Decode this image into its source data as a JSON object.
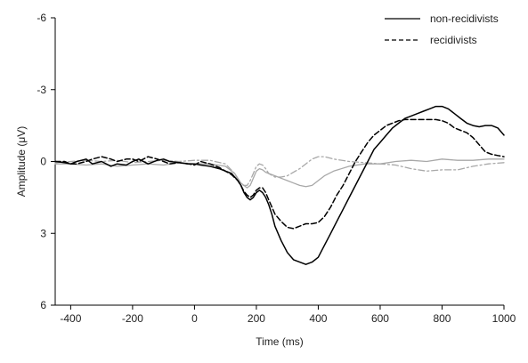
{
  "chart_data": {
    "type": "line",
    "title": "",
    "xlabel": "Time (ms)",
    "ylabel": "Amplitude (μV)",
    "xlim": [
      -450,
      1000
    ],
    "ylim": [
      6,
      -6
    ],
    "y_inverted": true,
    "x_ticks": [
      -400,
      -200,
      0,
      200,
      400,
      600,
      800,
      1000
    ],
    "y_ticks": [
      -6,
      -3,
      0,
      3,
      6
    ],
    "grid": false,
    "legend_position": "top-right",
    "series": [
      {
        "name": "non-recidivists",
        "color": "#000000",
        "style": "solid",
        "x": [
          -450,
          -420,
          -400,
          -380,
          -350,
          -330,
          -300,
          -270,
          -250,
          -220,
          -200,
          -180,
          -150,
          -120,
          -100,
          -80,
          -50,
          -20,
          0,
          20,
          50,
          80,
          100,
          120,
          140,
          150,
          160,
          170,
          180,
          190,
          200,
          210,
          220,
          230,
          240,
          250,
          260,
          280,
          300,
          320,
          340,
          360,
          380,
          400,
          420,
          440,
          460,
          480,
          500,
          520,
          540,
          560,
          580,
          600,
          620,
          640,
          660,
          680,
          700,
          720,
          740,
          760,
          780,
          800,
          820,
          840,
          860,
          880,
          900,
          920,
          940,
          960,
          980,
          1000
        ],
        "y": [
          0.0,
          0.05,
          0.1,
          0.0,
          -0.1,
          0.1,
          0.0,
          0.2,
          0.1,
          0.15,
          0.0,
          -0.1,
          0.1,
          -0.05,
          -0.1,
          0.0,
          0.05,
          0.1,
          0.1,
          0.15,
          0.2,
          0.3,
          0.4,
          0.5,
          0.8,
          1.0,
          1.3,
          1.5,
          1.6,
          1.5,
          1.3,
          1.2,
          1.3,
          1.5,
          1.8,
          2.2,
          2.7,
          3.3,
          3.8,
          4.1,
          4.2,
          4.3,
          4.2,
          4.0,
          3.5,
          3.0,
          2.5,
          2.0,
          1.5,
          1.0,
          0.5,
          0.0,
          -0.5,
          -0.8,
          -1.1,
          -1.4,
          -1.6,
          -1.8,
          -1.9,
          -2.0,
          -2.1,
          -2.2,
          -2.3,
          -2.3,
          -2.2,
          -2.0,
          -1.8,
          -1.6,
          -1.5,
          -1.45,
          -1.5,
          -1.5,
          -1.4,
          -1.1
        ]
      },
      {
        "name": "recidivists",
        "color": "#000000",
        "style": "dashed",
        "x": [
          -450,
          -420,
          -400,
          -380,
          -350,
          -330,
          -300,
          -270,
          -250,
          -220,
          -200,
          -180,
          -150,
          -120,
          -100,
          -80,
          -50,
          -20,
          0,
          20,
          50,
          80,
          100,
          120,
          140,
          150,
          160,
          170,
          180,
          190,
          200,
          210,
          220,
          230,
          240,
          250,
          260,
          280,
          300,
          320,
          340,
          360,
          380,
          400,
          420,
          440,
          460,
          480,
          500,
          520,
          540,
          560,
          580,
          600,
          620,
          640,
          660,
          680,
          700,
          720,
          740,
          760,
          780,
          800,
          820,
          840,
          860,
          880,
          900,
          920,
          940,
          960,
          980,
          1000
        ],
        "y": [
          0.0,
          0.0,
          0.1,
          0.1,
          0.0,
          -0.1,
          -0.2,
          -0.1,
          0.0,
          -0.1,
          -0.1,
          0.0,
          -0.2,
          -0.1,
          0.0,
          0.1,
          0.05,
          0.1,
          0.15,
          0.0,
          0.1,
          0.25,
          0.4,
          0.55,
          0.8,
          1.0,
          1.25,
          1.4,
          1.5,
          1.4,
          1.2,
          1.1,
          1.1,
          1.3,
          1.6,
          1.9,
          2.2,
          2.5,
          2.75,
          2.8,
          2.7,
          2.6,
          2.6,
          2.55,
          2.3,
          1.9,
          1.4,
          1.0,
          0.5,
          0.0,
          -0.4,
          -0.8,
          -1.1,
          -1.3,
          -1.5,
          -1.6,
          -1.7,
          -1.75,
          -1.75,
          -1.75,
          -1.75,
          -1.75,
          -1.75,
          -1.7,
          -1.6,
          -1.4,
          -1.3,
          -1.2,
          -1.0,
          -0.7,
          -0.4,
          -0.3,
          -0.25,
          -0.2
        ]
      },
      {
        "name": "",
        "color": "#a8a8a8",
        "style": "solid",
        "x": [
          -450,
          -400,
          -350,
          -300,
          -250,
          -200,
          -150,
          -100,
          -50,
          0,
          50,
          100,
          130,
          150,
          170,
          180,
          190,
          200,
          210,
          220,
          230,
          240,
          260,
          280,
          300,
          320,
          340,
          360,
          380,
          400,
          420,
          450,
          500,
          550,
          600,
          650,
          700,
          750,
          800,
          850,
          900,
          950,
          1000
        ],
        "y": [
          0.1,
          0.1,
          0.15,
          0.1,
          0.2,
          0.15,
          0.1,
          0.15,
          0.05,
          0.1,
          0.1,
          0.2,
          0.5,
          0.9,
          1.1,
          1.0,
          0.7,
          0.4,
          0.3,
          0.35,
          0.45,
          0.5,
          0.6,
          0.7,
          0.8,
          0.9,
          1.0,
          1.05,
          1.0,
          0.8,
          0.6,
          0.4,
          0.2,
          0.1,
          0.1,
          0.0,
          -0.05,
          0.0,
          -0.1,
          -0.05,
          -0.05,
          -0.1,
          -0.1
        ]
      },
      {
        "name": "",
        "color": "#a8a8a8",
        "style": "dashdot",
        "x": [
          -450,
          -400,
          -350,
          -300,
          -250,
          -200,
          -150,
          -100,
          -50,
          0,
          50,
          100,
          130,
          150,
          170,
          180,
          190,
          200,
          210,
          220,
          230,
          240,
          260,
          280,
          300,
          320,
          340,
          360,
          380,
          400,
          420,
          450,
          500,
          550,
          600,
          650,
          700,
          750,
          800,
          850,
          900,
          950,
          1000
        ],
        "y": [
          0.05,
          0.0,
          -0.05,
          0.0,
          -0.05,
          0.05,
          0.0,
          -0.05,
          0.0,
          -0.05,
          -0.05,
          0.1,
          0.5,
          1.0,
          1.0,
          0.8,
          0.5,
          0.2,
          0.1,
          0.15,
          0.3,
          0.5,
          0.65,
          0.65,
          0.6,
          0.45,
          0.3,
          0.1,
          -0.1,
          -0.2,
          -0.2,
          -0.1,
          0.0,
          0.05,
          0.1,
          0.15,
          0.3,
          0.4,
          0.35,
          0.35,
          0.2,
          0.1,
          0.05
        ]
      }
    ]
  }
}
